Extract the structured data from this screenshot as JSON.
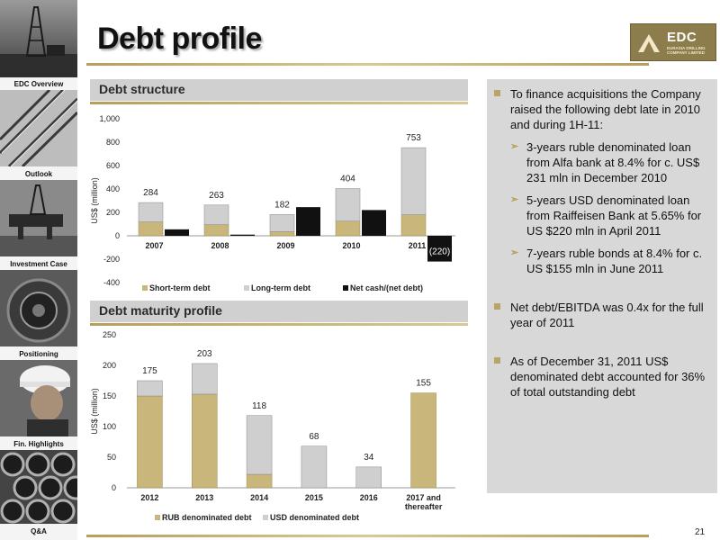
{
  "nav": {
    "items": [
      {
        "label": "EDC Overview"
      },
      {
        "label": "Outlook"
      },
      {
        "label": "Investment Case"
      },
      {
        "label": "Positioning"
      },
      {
        "label": "Fin. Highlights"
      },
      {
        "label": "Q&A"
      }
    ]
  },
  "header": {
    "title": "Debt profile",
    "logo_text": "EDC",
    "logo_subtext": "EURASIA DRILLING COMPANY LIMITED"
  },
  "sections": {
    "debt_structure": "Debt structure",
    "maturity": "Debt maturity profile"
  },
  "colors": {
    "accent": "#b79f5a",
    "rub": "#c9b67a",
    "usd": "#cfcfcf",
    "net_cash": "#111111",
    "panel": "#d8d8d8"
  },
  "chart_data": [
    {
      "type": "bar",
      "stacked": true,
      "categories": [
        "2007",
        "2008",
        "2009",
        "2010",
        "2011"
      ],
      "series": [
        {
          "name": "Short-term debt",
          "values": [
            118,
            95,
            35,
            125,
            180
          ]
        },
        {
          "name": "Long-term debt",
          "values": [
            166,
            168,
            147,
            279,
            573
          ]
        },
        {
          "name": "Net cash/(net debt)",
          "values": [
            55,
            10,
            245,
            220,
            -220
          ]
        }
      ],
      "data_labels": [
        "284",
        "263",
        "182",
        "404",
        "753"
      ],
      "negative_label": "(220)",
      "ylabel": "US$ (million)",
      "ylim": [
        -400,
        1000
      ],
      "yticks": [
        "1,000",
        "800",
        "600",
        "400",
        "200",
        "0",
        "-200",
        "-400"
      ],
      "legend": "bottom"
    },
    {
      "type": "bar",
      "stacked": true,
      "categories": [
        "2012",
        "2013",
        "2014",
        "2015",
        "2016",
        "2017 and thereafter"
      ],
      "series": [
        {
          "name": "RUB denominated debt",
          "values": [
            150,
            153,
            22,
            0,
            0,
            155
          ]
        },
        {
          "name": "USD denominated debt",
          "values": [
            25,
            50,
            96,
            68,
            34,
            0
          ]
        }
      ],
      "data_labels": [
        "175",
        "203",
        "118",
        "68",
        "34",
        "155"
      ],
      "ylabel": "US$ (million)",
      "ylim": [
        0,
        250
      ],
      "yticks": [
        "250",
        "200",
        "150",
        "100",
        "50",
        "0"
      ],
      "legend": "bottom"
    }
  ],
  "panel": {
    "bullets": [
      {
        "text": "To finance acquisitions the Company raised the following debt late in 2010 and during 1H-11:",
        "subs": [
          "3-years  ruble denominated loan from Alfa bank at 8.4% for c. US$ 231 mln in December 2010",
          "5-years USD denominated loan from Raiffeisen Bank at 5.65% for US $220 mln in April 2011",
          "7-years ruble bonds at 8.4% for c. US $155 mln in June 2011"
        ]
      },
      {
        "text": "Net debt/EBITDA was 0.4x for the full year of 2011",
        "subs": []
      },
      {
        "text": "As of December 31, 2011 US$ denominated debt accounted for 36% of total outstanding debt",
        "subs": []
      }
    ]
  },
  "footer": {
    "page_number": "21"
  }
}
